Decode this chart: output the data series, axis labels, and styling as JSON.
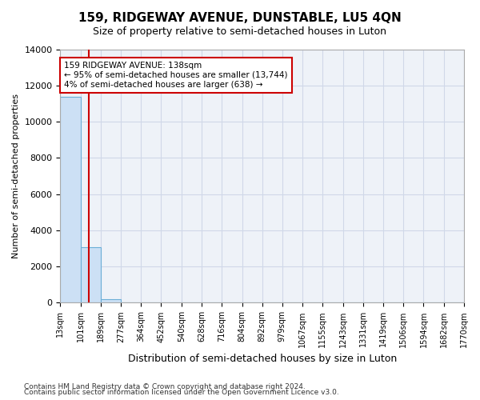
{
  "title": "159, RIDGEWAY AVENUE, DUNSTABLE, LU5 4QN",
  "subtitle": "Size of property relative to semi-detached houses in Luton",
  "xlabel": "Distribution of semi-detached houses by size in Luton",
  "ylabel": "Number of semi-detached properties",
  "footer_line1": "Contains HM Land Registry data © Crown copyright and database right 2024.",
  "footer_line2": "Contains public sector information licensed under the Open Government Licence v3.0.",
  "annotation_line1": "159 RIDGEWAY AVENUE: 138sqm",
  "annotation_line2": "← 95% of semi-detached houses are smaller (13,744)",
  "annotation_line3": "4% of semi-detached houses are larger (638) →",
  "property_size_sqm": 138,
  "bar_color": "#cce0f5",
  "bar_edge_color": "#6baed6",
  "redline_color": "#cc0000",
  "annotation_box_color": "#cc0000",
  "grid_color": "#d0d8e8",
  "background_color": "#eef2f8",
  "ylim": [
    0,
    14000
  ],
  "yticks": [
    0,
    2000,
    4000,
    6000,
    8000,
    10000,
    12000,
    14000
  ],
  "bin_edges": [
    13,
    101,
    189,
    277,
    364,
    452,
    540,
    628,
    716,
    804,
    892,
    979,
    1067,
    1155,
    1243,
    1331,
    1419,
    1506,
    1594,
    1682,
    1770
  ],
  "bin_labels": [
    "13sqm",
    "101sqm",
    "189sqm",
    "277sqm",
    "364sqm",
    "452sqm",
    "540sqm",
    "628sqm",
    "716sqm",
    "804sqm",
    "892sqm",
    "979sqm",
    "1067sqm",
    "1155sqm",
    "1243sqm",
    "1331sqm",
    "1419sqm",
    "1506sqm",
    "1594sqm",
    "1682sqm",
    "1770sqm"
  ],
  "bar_values": [
    11350,
    3050,
    200,
    0,
    0,
    0,
    0,
    0,
    0,
    0,
    0,
    0,
    0,
    0,
    0,
    0,
    0,
    0,
    0,
    0
  ]
}
